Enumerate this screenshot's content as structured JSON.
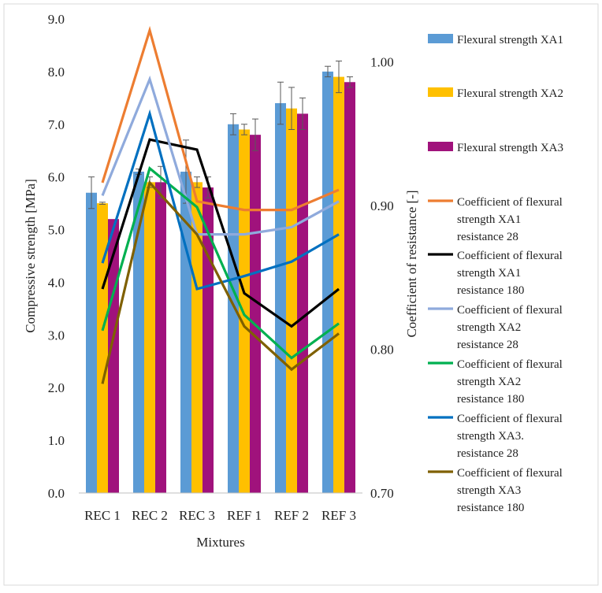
{
  "chart_data": {
    "type": "bar",
    "categories": [
      "REC 1",
      "REC 2",
      "REC 3",
      "REF 1",
      "REF 2",
      "REF 3"
    ],
    "xlabel": "Mixtures",
    "ylabel": "Compressive strength [MPa]",
    "ylim": [
      0,
      9
    ],
    "yticks": [
      "0.0",
      "1.0",
      "2.0",
      "3.0",
      "4.0",
      "5.0",
      "6.0",
      "7.0",
      "8.0",
      "9.0"
    ],
    "y2label": "Coefficient of resistance  [-]",
    "y2lim": [
      0.7,
      1.03
    ],
    "y2ticks": [
      "0.70",
      "0.80",
      "0.90",
      "1.00"
    ],
    "grid": false,
    "legend_position": "right",
    "bar_series": [
      {
        "name": "Flexural strength XA1",
        "color": "#5b9bd5",
        "values": [
          5.7,
          6.1,
          6.1,
          7.0,
          7.4,
          8.0
        ],
        "errors": [
          0.3,
          0.05,
          0.6,
          0.2,
          0.4,
          0.1
        ]
      },
      {
        "name": "Flexural strength XA2",
        "color": "#ffc000",
        "values": [
          5.5,
          5.9,
          5.9,
          6.9,
          7.3,
          7.9
        ],
        "errors": [
          0.02,
          0.1,
          0.1,
          0.1,
          0.4,
          0.3
        ]
      },
      {
        "name": "Flexural strength XA3",
        "color": "#a0127c",
        "values": [
          5.2,
          5.9,
          5.8,
          6.8,
          7.2,
          7.8
        ],
        "errors": [
          0.0,
          0.3,
          0.2,
          0.3,
          0.3,
          0.1
        ]
      }
    ],
    "line_series": [
      {
        "name": "Coefficient of  flexural strength XA1 resistance 28",
        "legend_lines": [
          "Coefficient of  flexural",
          "strength XA1",
          "resistance 28"
        ],
        "color": "#ed7d31",
        "values": [
          0.916,
          1.022,
          0.903,
          0.897,
          0.897,
          0.911
        ]
      },
      {
        "name": "Coefficient of  flexural strength XA1 resistance 180",
        "legend_lines": [
          "Coefficient of  flexural",
          "strength XA1",
          "resistance 180"
        ],
        "color": "#000000",
        "values": [
          0.842,
          0.946,
          0.939,
          0.839,
          0.816,
          0.842
        ]
      },
      {
        "name": "Coefficient of  flexural strength XA2 resistance 28",
        "legend_lines": [
          "Coefficient of  flexural",
          "strength XA2",
          "resistance 28"
        ],
        "color": "#8faadc",
        "values": [
          0.907,
          0.988,
          0.88,
          0.88,
          0.885,
          0.903
        ]
      },
      {
        "name": "Coefficient of  flexural strength XA2 resistance 180",
        "legend_lines": [
          "Coefficient of  flexural",
          "strength XA2",
          "resistance 180"
        ],
        "color": "#00b050",
        "values": [
          0.813,
          0.926,
          0.899,
          0.824,
          0.794,
          0.818
        ]
      },
      {
        "name": "Coefficient of  flexural strength XA3. resistance 28",
        "legend_lines": [
          "Coefficient of  flexural",
          "strength XA3.",
          "resistance 28"
        ],
        "color": "#0070c0",
        "values": [
          0.86,
          0.964,
          0.842,
          0.851,
          0.861,
          0.88
        ]
      },
      {
        "name": "Coefficient of  flexural strength XA3 resistance 180",
        "legend_lines": [
          "Coefficient of  flexural",
          "strength XA3",
          "resistance 180"
        ],
        "color": "#7f6000",
        "values": [
          0.776,
          0.916,
          0.88,
          0.816,
          0.786,
          0.811
        ]
      }
    ]
  }
}
